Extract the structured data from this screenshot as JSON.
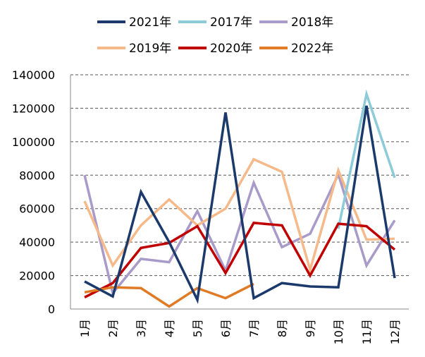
{
  "chart_data": {
    "type": "line",
    "categories": [
      "1月",
      "2月",
      "3月",
      "4月",
      "5月",
      "6月",
      "7月",
      "8月",
      "9月",
      "10月",
      "11月",
      "12月"
    ],
    "ylim": [
      0,
      140000
    ],
    "yticks": [
      "0",
      "20000",
      "40000",
      "60000",
      "80000",
      "100000",
      "120000",
      "140000"
    ],
    "grid": true,
    "legend_position": "top",
    "series": [
      {
        "name": "2021年",
        "color": "#1b3a6b",
        "values": [
          16500,
          7500,
          70000,
          40000,
          5500,
          117500,
          6500,
          15500,
          13500,
          13000,
          121500,
          18500
        ]
      },
      {
        "name": "2017年",
        "color": "#8ecbd8",
        "values": [
          null,
          null,
          null,
          null,
          null,
          null,
          null,
          null,
          null,
          48000,
          128500,
          78500
        ]
      },
      {
        "name": "2018年",
        "color": "#a99bc9",
        "values": [
          80000,
          9500,
          30000,
          28000,
          58500,
          23000,
          75500,
          37000,
          45000,
          80500,
          26000,
          53000
        ]
      },
      {
        "name": "2019年",
        "color": "#f5b98a",
        "values": [
          64500,
          26000,
          50000,
          65500,
          50000,
          60000,
          89500,
          82000,
          23500,
          83000,
          41500,
          42000
        ]
      },
      {
        "name": "2020年",
        "color": "#c00000",
        "values": [
          7000,
          15500,
          36500,
          39500,
          49500,
          21500,
          51500,
          50000,
          20000,
          51000,
          49500,
          35500
        ]
      },
      {
        "name": "2022年",
        "color": "#e07a25",
        "values": [
          10000,
          13000,
          12500,
          1500,
          12500,
          6500,
          15000,
          null,
          null,
          null,
          null,
          null
        ]
      }
    ]
  }
}
